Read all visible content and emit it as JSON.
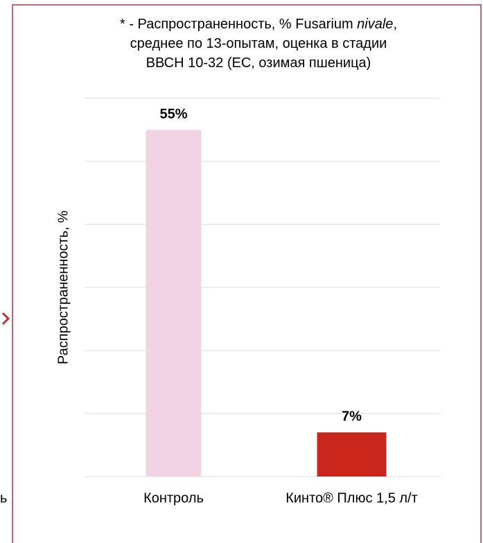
{
  "chart_data": {
    "type": "bar",
    "title_lines": [
      [
        "* - Распространенность, % Fusarium ",
        "nivale",
        ","
      ],
      [
        "среднее по 13-опытам, оценка в стадии"
      ],
      [
        "ВВСН 10-32 (ЕС, озимая пшеница)"
      ]
    ],
    "y_label": "Распространенность, %",
    "categories": [
      "Контроль",
      "Кинто® Плюс 1,5 л/т"
    ],
    "values": [
      55,
      7
    ],
    "value_labels": [
      "55%",
      "7%"
    ],
    "colors": [
      "#f2d3e3",
      "#c9261c"
    ],
    "ylim": [
      0,
      60
    ],
    "yticks": [
      0,
      10,
      20,
      30,
      40,
      50,
      60
    ],
    "grid": true,
    "side_fragment": "ь"
  }
}
